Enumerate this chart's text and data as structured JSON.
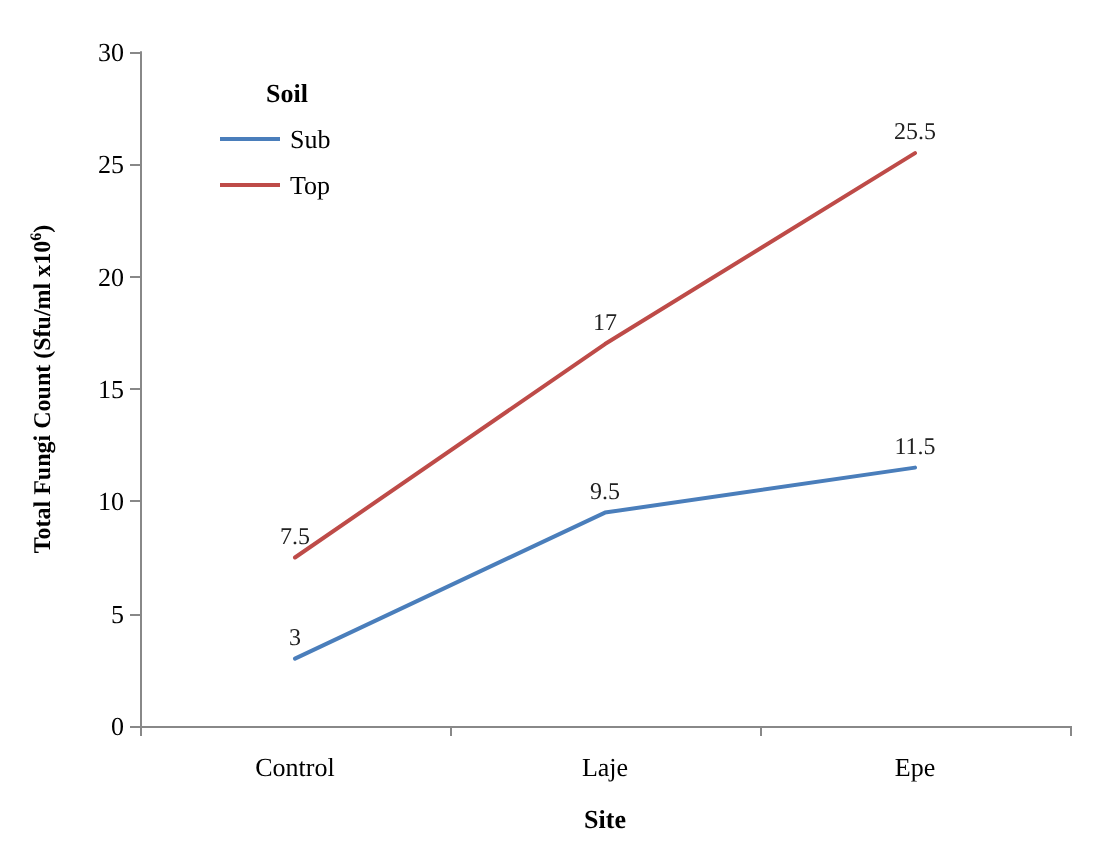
{
  "chart_data": {
    "type": "line",
    "xlabel": "Site",
    "ylabel": "Total Fungi Count (Sfu/ml x10$^{6}$)",
    "legend_title": "Soil",
    "categories": [
      "Control",
      "Laje",
      "Epe"
    ],
    "series": [
      {
        "name": "Sub",
        "color": "#4a7ebb",
        "values": [
          3,
          9.5,
          11.5
        ]
      },
      {
        "name": "Top",
        "color": "#be4b48",
        "values": [
          7.5,
          17,
          25.5
        ]
      }
    ],
    "ylim": [
      0,
      30
    ],
    "yticks": [
      0,
      5,
      10,
      15,
      20,
      25,
      30
    ],
    "data_labels": true,
    "grid": false,
    "legend": "top left",
    "marker": "none",
    "line_style": "solid"
  }
}
